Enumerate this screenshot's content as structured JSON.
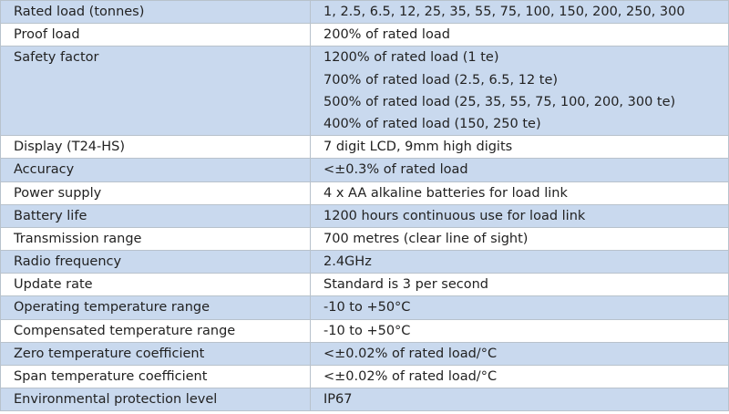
{
  "table": {
    "rows": [
      [
        "Rated load (tonnes)",
        [
          "1, 2.5, 6.5, 12, 25, 35, 55, 75, 100, 150, 200, 250, 300"
        ]
      ],
      [
        "Proof load",
        [
          "200%  of rated load"
        ]
      ],
      [
        "Safety factor",
        [
          "1200% of rated load (1 te)",
          "700% of rated load (2.5, 6.5, 12 te)",
          "500% of rated load (25, 35, 55, 75, 100, 200, 300 te)",
          "400% of rated load (150, 250 te)"
        ]
      ],
      [
        "Display (T24-HS)",
        [
          "7 digit LCD, 9mm high digits"
        ]
      ],
      [
        "Accuracy",
        [
          "<±0.3% of rated load"
        ]
      ],
      [
        "Power supply",
        [
          "4 x AA alkaline batteries for load link"
        ]
      ],
      [
        "Battery life",
        [
          "1200 hours continuous use for load link"
        ]
      ],
      [
        "Transmission range",
        [
          "700 metres (clear line of sight)"
        ]
      ],
      [
        "Radio frequency",
        [
          "2.4GHz"
        ]
      ],
      [
        "Update rate",
        [
          "Standard is 3 per second"
        ]
      ],
      [
        "Operating temperature range",
        [
          "-10 to +50°C"
        ]
      ],
      [
        "Compensated temperature range",
        [
          "-10 to +50°C"
        ]
      ],
      [
        "Zero temperature coefficient",
        [
          "<±0.02% of rated load/°C"
        ]
      ],
      [
        "Span temperature coefficient",
        [
          "<±0.02% of rated load/°C"
        ]
      ],
      [
        "Environmental protection level",
        [
          "IP67"
        ]
      ]
    ]
  }
}
